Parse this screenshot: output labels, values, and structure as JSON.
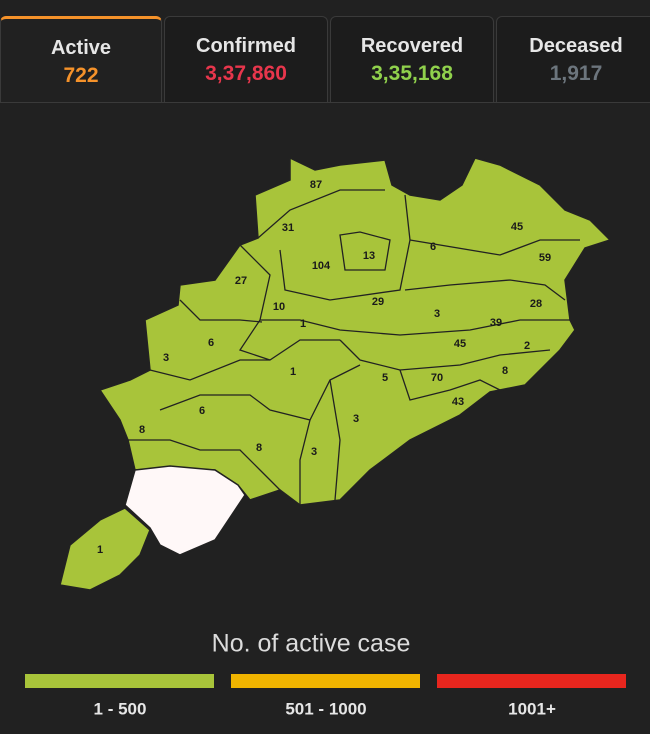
{
  "tabs": [
    {
      "label": "Active",
      "value": "722"
    },
    {
      "label": "Confirmed",
      "value": "3,37,860"
    },
    {
      "label": "Recovered",
      "value": "3,35,168"
    },
    {
      "label": "Deceased",
      "value": "1,917"
    }
  ],
  "map": {
    "districts": [
      "87",
      "31",
      "104",
      "13",
      "6",
      "45",
      "59",
      "27",
      "10",
      "29",
      "3",
      "28",
      "39",
      "1",
      "6",
      "3",
      "45",
      "2",
      "1",
      "5",
      "70",
      "8",
      "43",
      "6",
      "8",
      "3",
      "8",
      "3",
      "1"
    ]
  },
  "legend": {
    "title": "No. of active case",
    "items": [
      "1 - 500",
      "501 - 1000",
      "1001+"
    ]
  }
}
